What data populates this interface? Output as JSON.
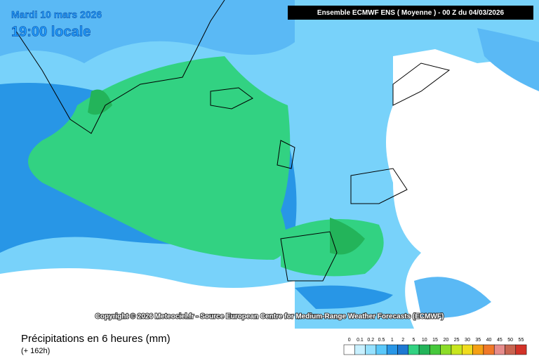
{
  "header": {
    "date": "Mardi 10 mars 2026",
    "time": "19:00 locale",
    "model": "Ensemble ECMWF ENS  ( Moyenne )  -  00 Z du 04/03/2026"
  },
  "copyright": "Copyright © 2026 Meteociel.fr - Source European Centre for Medium-Range Weather Forecasts (ECMWF)",
  "footer": {
    "title": "Précipitations en 6 heures (mm)",
    "lead": "(+ 162h)"
  },
  "legend": {
    "labels": [
      0,
      0.1,
      0.2,
      0.5,
      1,
      2,
      5,
      10,
      15,
      20,
      25,
      30,
      35,
      40,
      45,
      50,
      55
    ],
    "colors": [
      "#ffffff",
      "#c8f0ff",
      "#96e1ff",
      "#5ac8fa",
      "#2896e6",
      "#1e78d2",
      "#32d282",
      "#23b45a",
      "#46c83c",
      "#8cdc28",
      "#c8e61e",
      "#f0dc1e",
      "#f5a014",
      "#f07828",
      "#e68c8c",
      "#c86450",
      "#d23228"
    ]
  }
}
